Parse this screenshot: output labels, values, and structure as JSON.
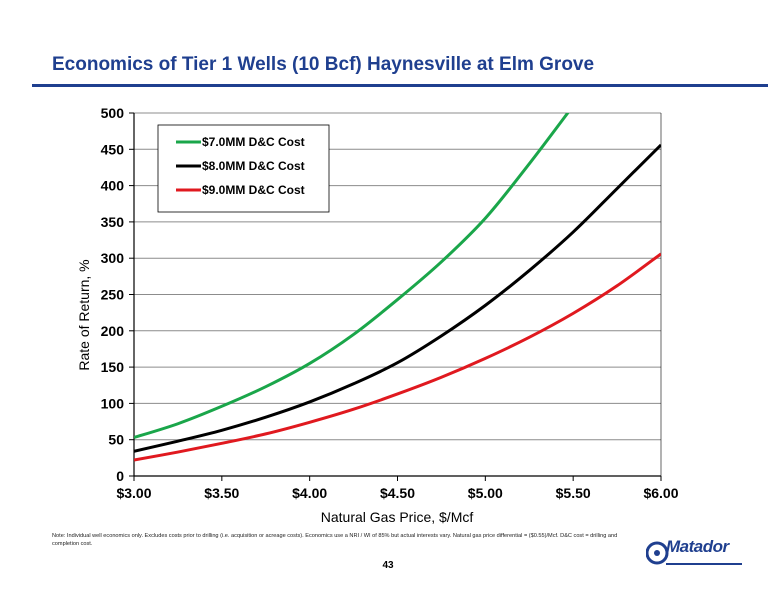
{
  "slide": {
    "title": "Economics of Tier 1 Wells (10 Bcf) Haynesville at Elm Grove",
    "footnote": "Note: Individual well economics only. Excludes costs prior to drilling (i.e. acquisition or acreage costs). Economics use a NRI / WI of 85% but actual interests vary. Natural gas price differential = ($0.55)/Mcf. D&C cost = drilling and completion cost.",
    "page_number": "43",
    "logo_text": "Matador",
    "accent_color": "#1f3f8f"
  },
  "chart_data": {
    "type": "line",
    "xlabel": "Natural Gas Price, $/Mcf",
    "ylabel": "Rate of Return, %",
    "xlim": [
      3.0,
      6.0
    ],
    "ylim": [
      0,
      500
    ],
    "x_ticks": [
      3.0,
      3.5,
      4.0,
      4.5,
      5.0,
      5.5,
      6.0
    ],
    "x_tick_labels": [
      "$3.00",
      "$3.50",
      "$4.00",
      "$4.50",
      "$5.00",
      "$5.50",
      "$6.00"
    ],
    "y_ticks": [
      0,
      50,
      100,
      150,
      200,
      250,
      300,
      350,
      400,
      450,
      500
    ],
    "y_tick_labels": [
      "0",
      "50",
      "100",
      "150",
      "200",
      "250",
      "300",
      "350",
      "400",
      "450",
      "500"
    ],
    "grid": "horizontal",
    "legend_position": "top-left",
    "x": [
      3.0,
      3.25,
      3.5,
      3.75,
      4.0,
      4.25,
      4.5,
      4.75,
      5.0,
      5.25,
      5.5,
      5.75,
      6.0
    ],
    "series": [
      {
        "name": "$7.0MM D&C Cost",
        "color": "#1aa64a",
        "values": [
          53,
          72,
          96,
          123,
          155,
          195,
          243,
          295,
          355,
          430,
          510,
          null,
          null
        ]
      },
      {
        "name": "$8.0MM D&C Cost",
        "color": "#000000",
        "values": [
          34,
          48,
          63,
          81,
          102,
          127,
          156,
          193,
          235,
          283,
          336,
          396,
          456
        ]
      },
      {
        "name": "$9.0MM D&C Cost",
        "color": "#e0191f",
        "values": [
          22,
          33,
          45,
          58,
          74,
          92,
          113,
          136,
          162,
          191,
          224,
          262,
          306
        ]
      }
    ]
  }
}
